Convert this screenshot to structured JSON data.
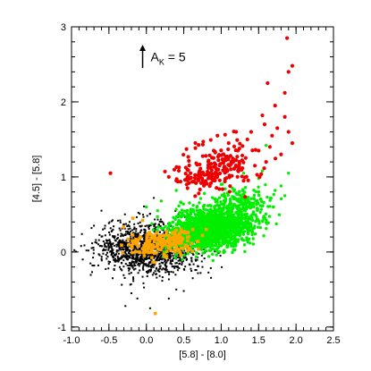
{
  "chart_data": {
    "type": "scatter",
    "xlabel": "[5.8] - [8.0]",
    "ylabel": "[4.5] - [5.8]",
    "xlim": [
      -1.0,
      2.5
    ],
    "ylim": [
      -1.05,
      3.0
    ],
    "x_ticks": [
      -1.0,
      -0.5,
      0.0,
      0.5,
      1.0,
      1.5,
      2.0,
      2.5
    ],
    "x_tick_labels": [
      "-1.0",
      "-0.5",
      "0.0",
      "0.5",
      "1.0",
      "1.5",
      "2.0",
      "2.5"
    ],
    "y_ticks": [
      -1,
      0,
      1,
      2,
      3
    ],
    "y_tick_labels": [
      "-1",
      "0",
      "1",
      "2",
      "3"
    ],
    "grid": false,
    "legend": "none",
    "annotation": {
      "main": "A",
      "subscript": "K",
      "suffix": " = 5",
      "vector_start": [
        -0.05,
        2.45
      ],
      "vector_end": [
        -0.05,
        2.75
      ]
    },
    "series": [
      {
        "color": "#000000",
        "marker": "square-small",
        "clusters": [
          {
            "center": [
              0.05,
              0.05
            ],
            "spread": [
              0.33,
              0.17
            ],
            "count": 1300
          }
        ],
        "points": [
          [
            -0.62,
            0.08
          ],
          [
            -0.72,
            -0.18
          ],
          [
            -0.58,
            0.3
          ],
          [
            -0.45,
            -0.35
          ],
          [
            -0.35,
            0.42
          ],
          [
            -0.8,
            0.02
          ],
          [
            0.4,
            -0.5
          ],
          [
            0.3,
            -0.62
          ],
          [
            -0.2,
            -0.55
          ],
          [
            0.62,
            -0.35
          ],
          [
            -0.6,
            0.55
          ],
          [
            0.7,
            0.12
          ],
          [
            0.75,
            -0.2
          ],
          [
            -0.28,
            -0.72
          ],
          [
            -0.12,
            -0.62
          ],
          [
            0.5,
            -0.52
          ],
          [
            -0.7,
            0.35
          ],
          [
            0.05,
            -0.75
          ],
          [
            -0.85,
            -0.1
          ],
          [
            0.1,
            0.72
          ]
        ]
      },
      {
        "color": "#00ee00",
        "marker": "circle-small",
        "clusters": [
          {
            "center": [
              0.88,
              0.32
            ],
            "spread": [
              0.25,
              0.13
            ],
            "count": 1200
          },
          {
            "center": [
              1.25,
              0.58
            ],
            "spread": [
              0.2,
              0.13
            ],
            "count": 260
          },
          {
            "center": [
              0.55,
              0.18
            ],
            "spread": [
              0.2,
              0.1
            ],
            "count": 240
          }
        ],
        "points": [
          [
            0.0,
            0.6
          ],
          [
            0.2,
            0.68
          ],
          [
            0.4,
            0.82
          ],
          [
            0.65,
            0.92
          ],
          [
            0.95,
            1.0
          ],
          [
            1.05,
            1.08
          ],
          [
            1.3,
            1.05
          ],
          [
            1.55,
            1.08
          ],
          [
            1.6,
            1.42
          ],
          [
            1.85,
            0.75
          ],
          [
            1.8,
            0.88
          ],
          [
            1.72,
            0.82
          ],
          [
            1.9,
            1.05
          ],
          [
            1.5,
            0.98
          ],
          [
            0.3,
            0.08
          ],
          [
            1.4,
            0.35
          ],
          [
            1.7,
            0.6
          ],
          [
            0.15,
            0.55
          ],
          [
            1.15,
            0.85
          ],
          [
            1.0,
            0.9
          ]
        ]
      },
      {
        "color": "#ffa500",
        "marker": "square",
        "clusters": [
          {
            "center": [
              0.15,
              0.1
            ],
            "spread": [
              0.2,
              0.08
            ],
            "count": 150
          },
          {
            "center": [
              0.42,
              0.16
            ],
            "spread": [
              0.12,
              0.06
            ],
            "count": 50
          }
        ],
        "points": [
          [
            0.12,
            -0.82
          ],
          [
            -0.18,
            0.45
          ],
          [
            -0.05,
            0.42
          ],
          [
            0.35,
            0.25
          ],
          [
            0.55,
            0.2
          ],
          [
            0.62,
            0.3
          ],
          [
            0.75,
            0.22
          ],
          [
            0.8,
            0.3
          ],
          [
            0.5,
            0.05
          ],
          [
            -0.08,
            0.2
          ],
          [
            0.3,
            0.22
          ],
          [
            0.45,
            0.25
          ],
          [
            0.68,
            0.14
          ],
          [
            -0.1,
            0.0
          ],
          [
            0.25,
            -0.05
          ]
        ]
      },
      {
        "color": "#ee0000",
        "marker": "circle",
        "clusters": [
          {
            "center": [
              0.72,
              1.0
            ],
            "spread": [
              0.18,
              0.1
            ],
            "count": 90
          },
          {
            "center": [
              1.05,
              1.18
            ],
            "spread": [
              0.22,
              0.15
            ],
            "count": 120
          }
        ],
        "points": [
          [
            -0.48,
            1.05
          ],
          [
            1.88,
            2.85
          ],
          [
            1.95,
            2.48
          ],
          [
            1.9,
            2.4
          ],
          [
            1.85,
            2.12
          ],
          [
            1.62,
            2.25
          ],
          [
            1.72,
            1.95
          ],
          [
            1.58,
            1.7
          ],
          [
            1.75,
            1.65
          ],
          [
            1.68,
            1.55
          ],
          [
            1.85,
            1.8
          ],
          [
            1.9,
            1.6
          ],
          [
            1.65,
            1.4
          ],
          [
            1.5,
            1.35
          ],
          [
            1.6,
            1.2
          ],
          [
            1.45,
            1.15
          ],
          [
            1.8,
            1.3
          ],
          [
            1.55,
            1.82
          ],
          [
            1.35,
            1.5
          ],
          [
            1.2,
            1.6
          ],
          [
            1.4,
            1.6
          ],
          [
            0.95,
            1.55
          ],
          [
            1.1,
            1.45
          ],
          [
            0.9,
            1.35
          ],
          [
            0.4,
            0.95
          ],
          [
            0.55,
            0.85
          ],
          [
            0.3,
            1.0
          ],
          [
            0.7,
            0.78
          ],
          [
            1.3,
            0.95
          ],
          [
            1.95,
            1.45
          ]
        ]
      }
    ]
  }
}
